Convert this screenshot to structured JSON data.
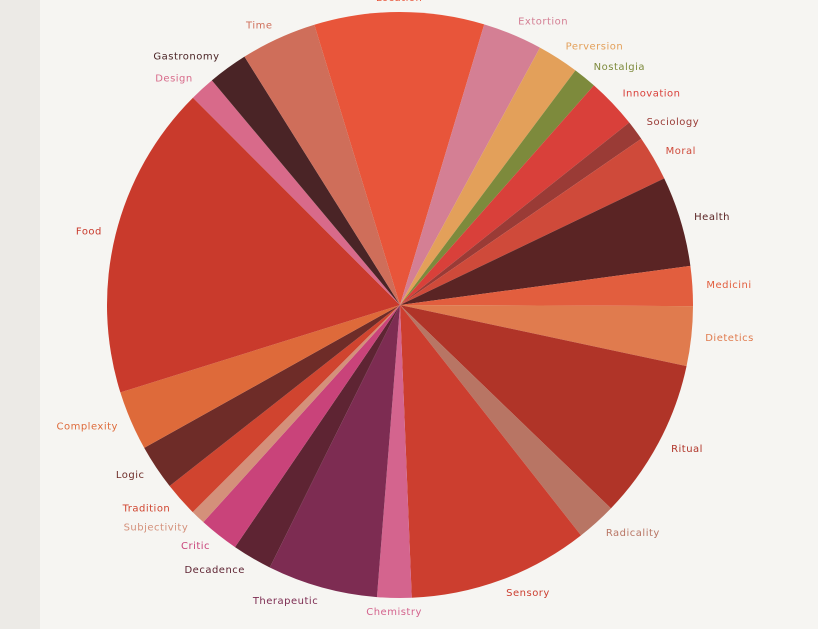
{
  "chart_data": {
    "type": "pie",
    "categories": [
      "Location",
      "Extortion",
      "Perversion",
      "Nostalgia",
      "Innovation",
      "Sociology",
      "Moral",
      "Health",
      "Medicini",
      "Dietetics",
      "Ritual",
      "Radicality",
      "Sensory",
      "Chemistry",
      "Therapeutic",
      "Decadence",
      "Critic",
      "Subjectivity",
      "Tradition",
      "Logic",
      "Complexity",
      "Food",
      "Design",
      "Gastronomy",
      "Time"
    ],
    "values": [
      9.4,
      3.3,
      2.3,
      1.3,
      2.8,
      1.1,
      2.5,
      5,
      2.2,
      3.3,
      8.9,
      2.2,
      10,
      1.9,
      6.1,
      2.2,
      2.2,
      0.8,
      1.9,
      2.5,
      3.3,
      17.4,
      1.4,
      2.2,
      4.2
    ],
    "colors": [
      "#e8553a",
      "#d47f94",
      "#e3a05a",
      "#7d8a3c",
      "#d9403a",
      "#9a3b36",
      "#cf4a3a",
      "#5a2424",
      "#e25e3e",
      "#e07b4e",
      "#b03428",
      "#b87564",
      "#cc3e2f",
      "#d4648e",
      "#7d2c52",
      "#5e2433",
      "#c9437a",
      "#d4907a",
      "#d0442f",
      "#6e2c28",
      "#de6a3a",
      "#c93a2c",
      "#d86a8a",
      "#4a2426",
      "#cf6e5a"
    ]
  }
}
